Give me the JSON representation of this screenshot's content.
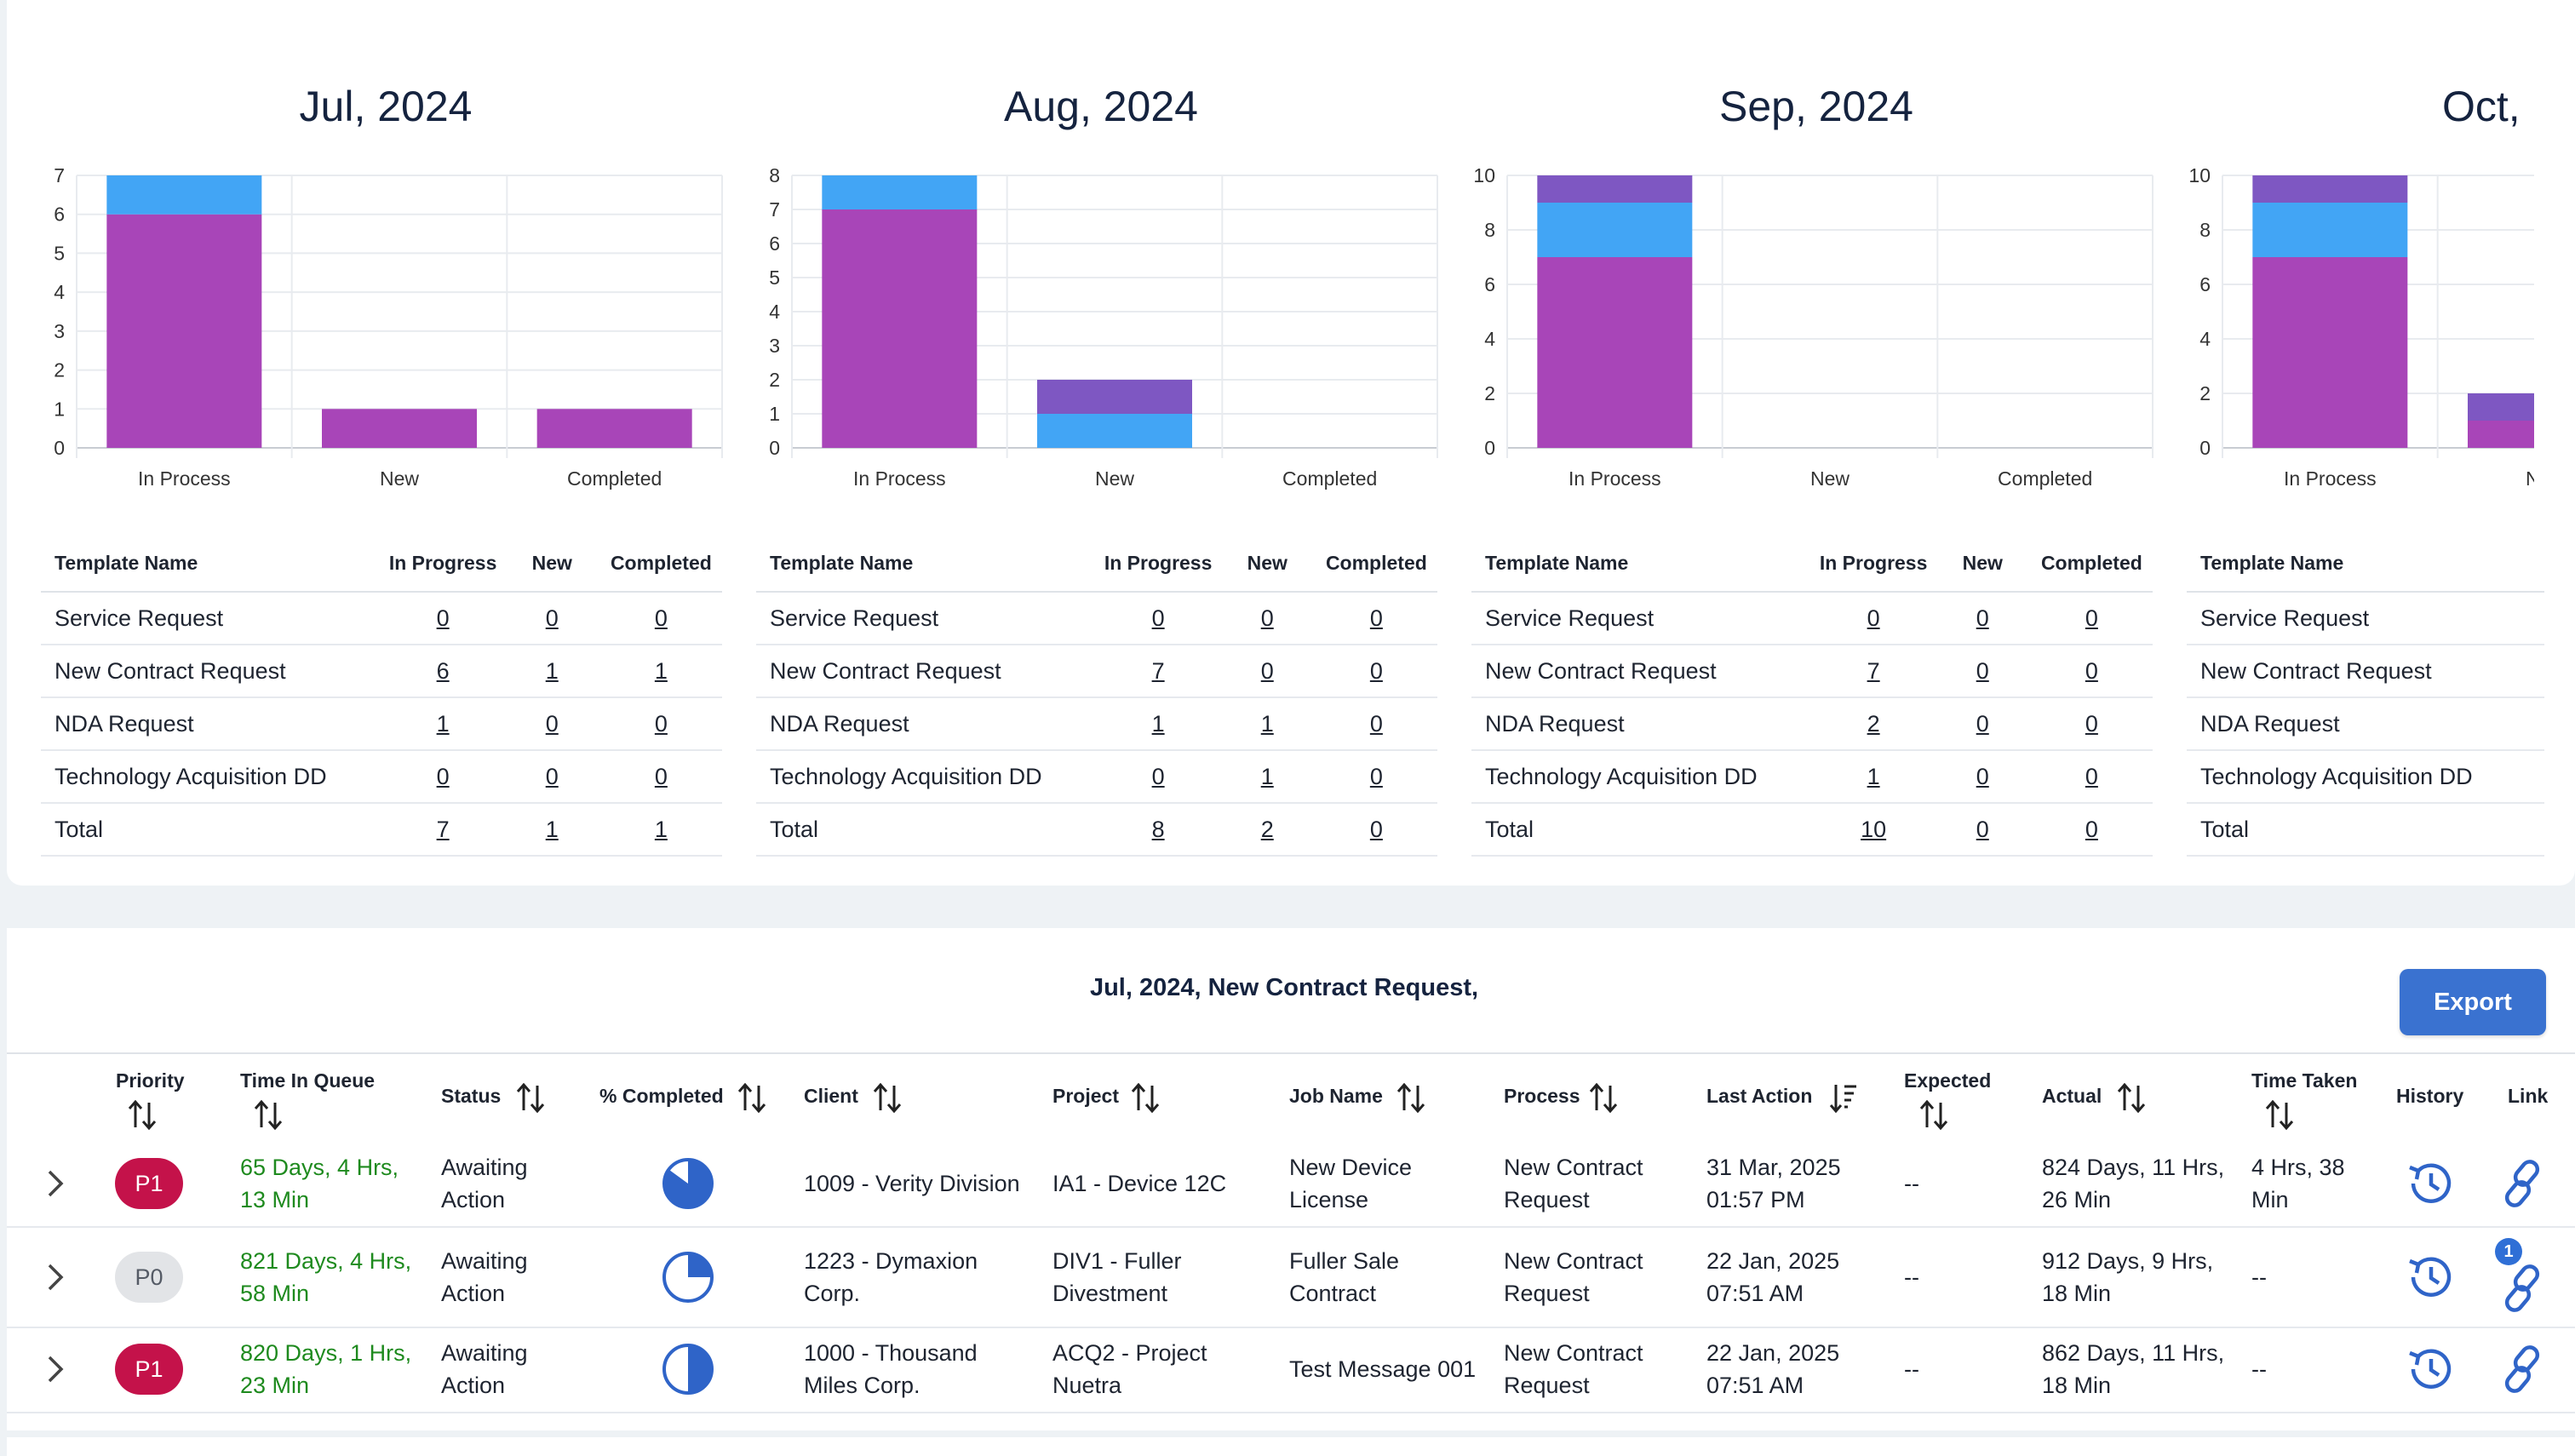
{
  "months": [
    {
      "title": "Jul, 2024",
      "chart": {
        "ymax": 7,
        "ticks": [
          "0",
          "1",
          "2",
          "3",
          "4",
          "5",
          "6",
          "7"
        ],
        "categories": [
          "In Process",
          "New",
          "Completed"
        ],
        "stacks": [
          [
            6,
            1,
            0
          ],
          [
            1,
            0,
            0
          ],
          [
            1,
            0,
            0
          ]
        ]
      },
      "rows": [
        {
          "name": "Service Request",
          "ip": "0",
          "new": "0",
          "comp": "0"
        },
        {
          "name": "New Contract Request",
          "ip": "6",
          "new": "1",
          "comp": "1"
        },
        {
          "name": "NDA Request",
          "ip": "1",
          "new": "0",
          "comp": "0"
        },
        {
          "name": "Technology Acquisition DD",
          "ip": "0",
          "new": "0",
          "comp": "0"
        },
        {
          "name": "Total",
          "ip": "7",
          "new": "1",
          "comp": "1"
        }
      ]
    },
    {
      "title": "Aug, 2024",
      "chart": {
        "ymax": 8,
        "ticks": [
          "0",
          "1",
          "2",
          "3",
          "4",
          "5",
          "6",
          "7",
          "8"
        ],
        "categories": [
          "In Process",
          "New",
          "Completed"
        ],
        "stacks": [
          [
            7,
            1,
            0
          ],
          [
            0,
            1,
            1
          ],
          [
            0,
            0,
            0
          ]
        ]
      },
      "rows": [
        {
          "name": "Service Request",
          "ip": "0",
          "new": "0",
          "comp": "0"
        },
        {
          "name": "New Contract Request",
          "ip": "7",
          "new": "0",
          "comp": "0"
        },
        {
          "name": "NDA Request",
          "ip": "1",
          "new": "1",
          "comp": "0"
        },
        {
          "name": "Technology Acquisition DD",
          "ip": "0",
          "new": "1",
          "comp": "0"
        },
        {
          "name": "Total",
          "ip": "8",
          "new": "2",
          "comp": "0"
        }
      ]
    },
    {
      "title": "Sep, 2024",
      "chart": {
        "ymax": 10,
        "ticks": [
          "0",
          "2",
          "4",
          "6",
          "8",
          "10"
        ],
        "categories": [
          "In Process",
          "New",
          "Completed"
        ],
        "stacks": [
          [
            7,
            2,
            1
          ],
          [
            0,
            0,
            0
          ],
          [
            0,
            0,
            0
          ]
        ]
      },
      "rows": [
        {
          "name": "Service Request",
          "ip": "0",
          "new": "0",
          "comp": "0"
        },
        {
          "name": "New Contract Request",
          "ip": "7",
          "new": "0",
          "comp": "0"
        },
        {
          "name": "NDA Request",
          "ip": "2",
          "new": "0",
          "comp": "0"
        },
        {
          "name": "Technology Acquisition DD",
          "ip": "1",
          "new": "0",
          "comp": "0"
        },
        {
          "name": "Total",
          "ip": "10",
          "new": "0",
          "comp": "0"
        }
      ]
    },
    {
      "title": "Oct,",
      "chart": {
        "ymax": 10,
        "ticks": [
          "0",
          "2",
          "4",
          "6",
          "8",
          "10"
        ],
        "categories": [
          "In Process",
          "New"
        ],
        "stacks": [
          [
            7,
            2,
            1
          ],
          [
            1,
            0,
            1
          ]
        ]
      },
      "rows": [
        {
          "name": "Service Request",
          "ip": "",
          "new": "",
          "comp": ""
        },
        {
          "name": "New Contract Request",
          "ip": "",
          "new": "",
          "comp": ""
        },
        {
          "name": "NDA Request",
          "ip": "",
          "new": "",
          "comp": ""
        },
        {
          "name": "Technology Acquisition DD",
          "ip": "",
          "new": "",
          "comp": ""
        },
        {
          "name": "Total",
          "ip": "",
          "new": "",
          "comp": ""
        }
      ]
    }
  ],
  "chart_data": [
    {
      "type": "bar",
      "title": "Jul, 2024",
      "categories": [
        "In Process",
        "New",
        "Completed"
      ],
      "series": [
        {
          "values": [
            6,
            1,
            1
          ]
        },
        {
          "values": [
            1,
            0,
            0
          ]
        },
        {
          "values": [
            0,
            0,
            0
          ]
        }
      ],
      "ylim": [
        0,
        7
      ]
    },
    {
      "type": "bar",
      "title": "Aug, 2024",
      "categories": [
        "In Process",
        "New",
        "Completed"
      ],
      "series": [
        {
          "values": [
            7,
            0,
            0
          ]
        },
        {
          "values": [
            1,
            1,
            0
          ]
        },
        {
          "values": [
            0,
            1,
            0
          ]
        }
      ],
      "ylim": [
        0,
        8
      ]
    },
    {
      "type": "bar",
      "title": "Sep, 2024",
      "categories": [
        "In Process",
        "New",
        "Completed"
      ],
      "series": [
        {
          "values": [
            7,
            0,
            0
          ]
        },
        {
          "values": [
            2,
            0,
            0
          ]
        },
        {
          "values": [
            1,
            0,
            0
          ]
        }
      ],
      "ylim": [
        0,
        10
      ]
    },
    {
      "type": "bar",
      "title": "Oct,",
      "categories": [
        "In Process",
        "New"
      ],
      "series": [
        {
          "values": [
            7,
            1
          ]
        },
        {
          "values": [
            2,
            0
          ]
        },
        {
          "values": [
            1,
            1
          ]
        }
      ],
      "ylim": [
        0,
        10
      ]
    }
  ],
  "colors": {
    "series1": "#a845b8",
    "series2": "#42a5f5",
    "series3": "#7e57c2",
    "accent": "#3a72d0",
    "p1": "#c4124a"
  },
  "table_header": {
    "template": "Template Name",
    "ip": "In Progress",
    "new": "New",
    "comp": "Completed"
  },
  "detail": {
    "title": "Jul, 2024, New Contract Request,",
    "export_label": "Export",
    "columns": {
      "priority": "Priority",
      "time_in_queue": "Time In Queue",
      "status": "Status",
      "pct": "% Completed",
      "client": "Client",
      "project": "Project",
      "job": "Job Name",
      "process": "Process",
      "last_action": "Last Action",
      "expected": "Expected",
      "actual": "Actual",
      "time_taken": "Time Taken",
      "history": "History",
      "link": "Link"
    },
    "rows": [
      {
        "priority": "P1",
        "tiq1": "65 Days, 4 Hrs,",
        "tiq2": "13 Min",
        "st1": "Awaiting",
        "st2": "Action",
        "pct": 0.85,
        "cl1": "1009 - Verity Division",
        "cl2": "",
        "pr1": "IA1 - Device 12C",
        "pr2": "",
        "jb1": "New Device",
        "jb2": "License",
        "ps1": "New Contract",
        "ps2": "Request",
        "la1": "31 Mar, 2025",
        "la2": "01:57 PM",
        "exp": "--",
        "ac1": "824 Days, 11 Hrs,",
        "ac2": "26 Min",
        "tt1": "4 Hrs, 38",
        "tt2": "Min",
        "notif": ""
      },
      {
        "priority": "P0",
        "tiq1": "821 Days, 4 Hrs,",
        "tiq2": "58 Min",
        "st1": "Awaiting",
        "st2": "Action",
        "pct": 0.25,
        "cl1": "1223 - Dymaxion",
        "cl2": "Corp.",
        "pr1": "DIV1 - Fuller",
        "pr2": "Divestment",
        "jb1": "Fuller Sale",
        "jb2": "Contract",
        "ps1": "New Contract",
        "ps2": "Request",
        "la1": "22 Jan, 2025",
        "la2": "07:51 AM",
        "exp": "--",
        "ac1": "912 Days, 9 Hrs,",
        "ac2": "18 Min",
        "tt1": "--",
        "tt2": "",
        "notif": "1"
      },
      {
        "priority": "P1",
        "tiq1": "820 Days, 1 Hrs,",
        "tiq2": "23 Min",
        "st1": "Awaiting",
        "st2": "Action",
        "pct": 0.5,
        "cl1": "1000 - Thousand",
        "cl2": "Miles Corp.",
        "pr1": "ACQ2 - Project",
        "pr2": "Nuetra",
        "jb1": "Test Message 001",
        "jb2": "",
        "ps1": "New Contract",
        "ps2": "Request",
        "la1": "22 Jan, 2025",
        "la2": "07:51 AM",
        "exp": "--",
        "ac1": "862 Days, 11 Hrs,",
        "ac2": "18 Min",
        "tt1": "--",
        "tt2": "",
        "notif": ""
      }
    ]
  }
}
